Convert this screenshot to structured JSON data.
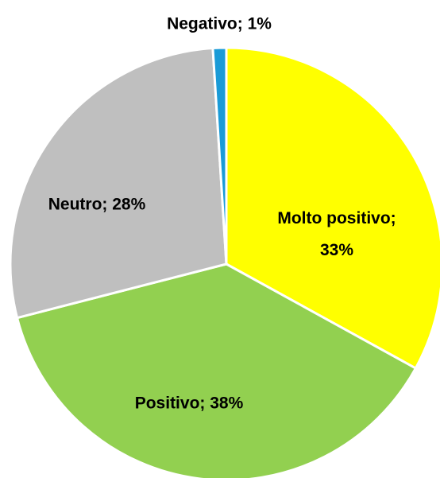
{
  "chart_data": {
    "type": "pie",
    "values": [
      33,
      38,
      28,
      1
    ],
    "value_labels": [
      "Molto positivo; 33%",
      "Positivo; 38%",
      "Neutro; 28%",
      "Negativo; 1%"
    ],
    "colors": [
      "#ffff00",
      "#92d050",
      "#bfbfbf",
      "#1a9bd7"
    ]
  }
}
